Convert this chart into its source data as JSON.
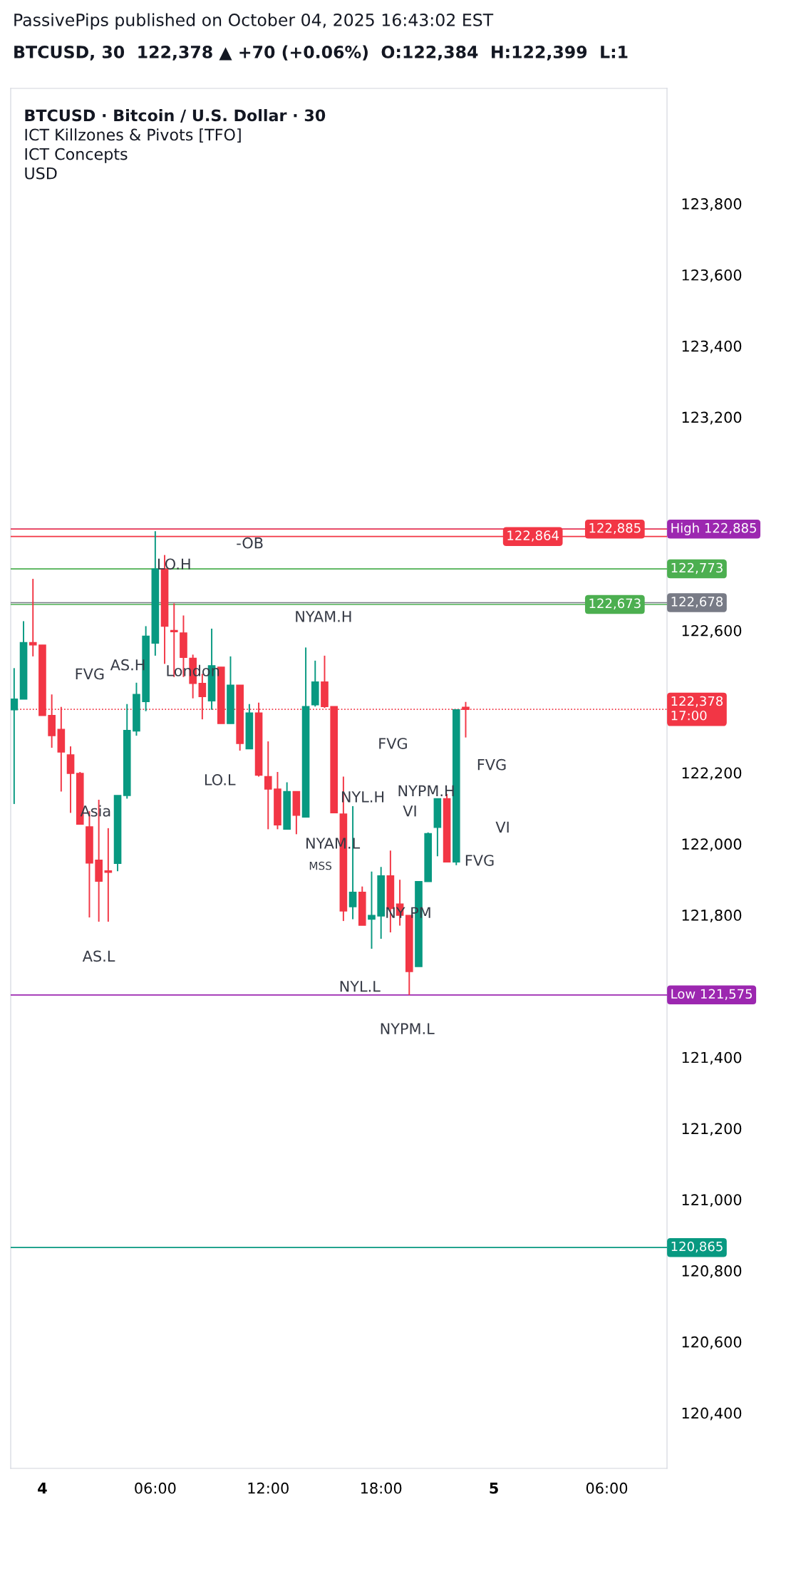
{
  "chart_data": {
    "type": "candlestick",
    "title": "PassivePips published on October 04, 2025 16:43:02 EST",
    "subtitle": "BTCUSD, 30  122,378 ▲ +70 (+0.06%)  O:122,384  H:122,399  L:1",
    "x": [
      "2025-10-03T22:30",
      "2025-10-03T23:00",
      "2025-10-03T23:30",
      "2025-10-04T00:00",
      "2025-10-04T00:30",
      "2025-10-04T01:00",
      "2025-10-04T01:30",
      "2025-10-04T02:00",
      "2025-10-04T02:30",
      "2025-10-04T03:00",
      "2025-10-04T03:30",
      "2025-10-04T04:00",
      "2025-10-04T04:30",
      "2025-10-04T05:00",
      "2025-10-04T05:30",
      "2025-10-04T06:00",
      "2025-10-04T06:30",
      "2025-10-04T07:00",
      "2025-10-04T07:30",
      "2025-10-04T08:00",
      "2025-10-04T08:30",
      "2025-10-04T09:00",
      "2025-10-04T09:30",
      "2025-10-04T10:00",
      "2025-10-04T10:30",
      "2025-10-04T11:00",
      "2025-10-04T11:30",
      "2025-10-04T12:00",
      "2025-10-04T12:30",
      "2025-10-04T13:00",
      "2025-10-04T13:30",
      "2025-10-04T14:00",
      "2025-10-04T14:30",
      "2025-10-04T15:00",
      "2025-10-04T15:30",
      "2025-10-04T16:00",
      "2025-10-04T16:30",
      "2025-10-04T17:00",
      "2025-10-04T17:30",
      "2025-10-04T18:00",
      "2025-10-04T18:30",
      "2025-10-04T19:00",
      "2025-10-04T19:30",
      "2025-10-04T20:00",
      "2025-10-04T20:30",
      "2025-10-04T21:00",
      "2025-10-04T21:30",
      "2025-10-04T22:00",
      "2025-10-04T22:30"
    ],
    "ohlc": [
      [
        122377,
        122494,
        122112,
        122407
      ],
      [
        122407,
        122626,
        122407,
        122566
      ],
      [
        122566,
        122745,
        122527,
        122559
      ],
      [
        122559,
        122559,
        122361,
        122361
      ],
      [
        122361,
        122420,
        122270,
        122304
      ],
      [
        122322,
        122385,
        122147,
        122258
      ],
      [
        122250,
        122274,
        122087,
        122198
      ],
      [
        122198,
        122202,
        122055,
        122055
      ],
      [
        122048,
        122092,
        121793,
        121946
      ],
      [
        121954,
        122124,
        121781,
        121895
      ],
      [
        121924,
        122044,
        121781,
        121920
      ],
      [
        121945,
        122136,
        121923,
        122136
      ],
      [
        122136,
        122393,
        122127,
        122319
      ],
      [
        122317,
        122453,
        122304,
        122420
      ],
      [
        122400,
        122612,
        122373,
        122584
      ],
      [
        122564,
        122879,
        122529,
        122773
      ],
      [
        122773,
        122812,
        122506,
        122612
      ],
      [
        122600,
        122676,
        122469,
        122596
      ],
      [
        122593,
        122642,
        122469,
        122524
      ],
      [
        122522,
        122532,
        122409,
        122451
      ],
      [
        122451,
        122478,
        122350,
        122414
      ],
      [
        122402,
        122605,
        122377,
        122501
      ],
      [
        122497,
        122497,
        122338,
        122338
      ],
      [
        122338,
        122527,
        122338,
        122446
      ],
      [
        122446,
        122446,
        122262,
        122282
      ],
      [
        122267,
        122393,
        122267,
        122368
      ],
      [
        122368,
        122397,
        122189,
        122193
      ],
      [
        122189,
        122288,
        122041,
        122154
      ],
      [
        122154,
        122202,
        122041,
        122053
      ],
      [
        122041,
        122173,
        122041,
        122147
      ],
      [
        122147,
        122147,
        122027,
        122080
      ],
      [
        122075,
        122552,
        122075,
        122386
      ],
      [
        122391,
        122515,
        122386,
        122455
      ],
      [
        122455,
        122529,
        122382,
        122386
      ],
      [
        122386,
        122386,
        122087,
        122087
      ],
      [
        122084,
        122189,
        121783,
        121811
      ],
      [
        121823,
        122106,
        121788,
        121864
      ],
      [
        121864,
        121880,
        121771,
        121771
      ],
      [
        121788,
        121922,
        121705,
        121799
      ],
      [
        121797,
        121935,
        121733,
        121910
      ],
      [
        121910,
        121981,
        121751,
        121818
      ],
      [
        121831,
        121899,
        121770,
        121799
      ],
      [
        121799,
        121799,
        121575,
        121641
      ],
      [
        121655,
        121894,
        121655,
        121894
      ],
      [
        121894,
        122032,
        121894,
        122029
      ],
      [
        122046,
        122127,
        121965,
        122127
      ],
      [
        122127,
        122140,
        121949,
        121949
      ],
      [
        121949,
        122377,
        121940,
        122377
      ],
      [
        122384,
        122399,
        122299,
        122378
      ]
    ],
    "xlim": [
      "2025-10-03T22:19",
      "2025-10-05T09:12"
    ],
    "xticks": [
      {
        "value": "2025-10-04T00:00",
        "label": "4"
      },
      {
        "value": "2025-10-04T06:00",
        "label": "06:00"
      },
      {
        "value": "2025-10-04T12:00",
        "label": "12:00"
      },
      {
        "value": "2025-10-04T18:00",
        "label": "18:00"
      },
      {
        "value": "2025-10-05T00:00",
        "label": "5"
      },
      {
        "value": "2025-10-05T06:00",
        "label": "06:00"
      }
    ],
    "ylim": [
      120244,
      124124
    ],
    "yticks": [
      {
        "value": 120400,
        "label": "120,400"
      },
      {
        "value": 120600,
        "label": "120,600"
      },
      {
        "value": 120800,
        "label": "120,800"
      },
      {
        "value": 121000,
        "label": "121,000"
      },
      {
        "value": 121200,
        "label": "121,200"
      },
      {
        "value": 121400,
        "label": "121,400"
      },
      {
        "value": 121800,
        "label": "121,800"
      },
      {
        "value": 122000,
        "label": "122,000"
      },
      {
        "value": 122200,
        "label": "122,200"
      },
      {
        "value": 122600,
        "label": "122,600"
      },
      {
        "value": 123200,
        "label": "123,200"
      },
      {
        "value": 123400,
        "label": "123,400"
      },
      {
        "value": 123600,
        "label": "123,600"
      },
      {
        "value": 123800,
        "label": "123,800"
      }
    ],
    "ref_lines": [
      {
        "axis": "y",
        "value": 122885,
        "label": "High 122,885",
        "color": "#9c27b0",
        "line_style": "solid"
      },
      {
        "axis": "y",
        "value": 122885,
        "label": "122,885",
        "color": "#f23645",
        "line_style": "solid"
      },
      {
        "axis": "y",
        "value": 122864,
        "label": "122,864",
        "color": "#f23645",
        "line_style": "solid"
      },
      {
        "axis": "y",
        "value": 122773,
        "label": "122,773",
        "color": "#4caf50",
        "line_style": "solid"
      },
      {
        "axis": "y",
        "value": 122678,
        "label": "122,678",
        "color": "#787b86",
        "line_style": "solid"
      },
      {
        "axis": "y",
        "value": 122673,
        "label": "122,673",
        "color": "#4caf50",
        "line_style": "solid"
      },
      {
        "axis": "y",
        "value": 122378,
        "label": "122,378\n17:00",
        "color": "#f23645",
        "line_style": "dotted"
      },
      {
        "axis": "y",
        "value": 121575,
        "label": "Low 121,575",
        "color": "#9c27b0",
        "line_style": "solid"
      },
      {
        "axis": "y",
        "value": 120865,
        "label": "120,865",
        "color": "#089981",
        "line_style": "solid"
      }
    ],
    "annotations": [
      "BTCUSD · Bitcoin / U.S. Dollar · 30",
      "ICT Killzones & Pivots [TFO]",
      "ICT Concepts",
      "USD",
      "NYAM.H",
      "FVG",
      "AS.H",
      "FVG",
      "FVG",
      "LO.L",
      "NYPM.H",
      "Asia",
      "VI",
      "NYL.H",
      "VI",
      "NYAM.L",
      "MSS",
      "FVG",
      "AS.L",
      "NYPM.L",
      "-OB",
      "NYL.L",
      {
        "text": "LO.H",
        "x": "2025-10-04T07:00",
        "y": 122783
      },
      {
        "text": "London",
        "x": "2025-10-04T08:00",
        "y": 122483
      },
      {
        "text": "NY PM",
        "x": "2025-10-04T19:27",
        "y": 121803
      }
    ]
  }
}
